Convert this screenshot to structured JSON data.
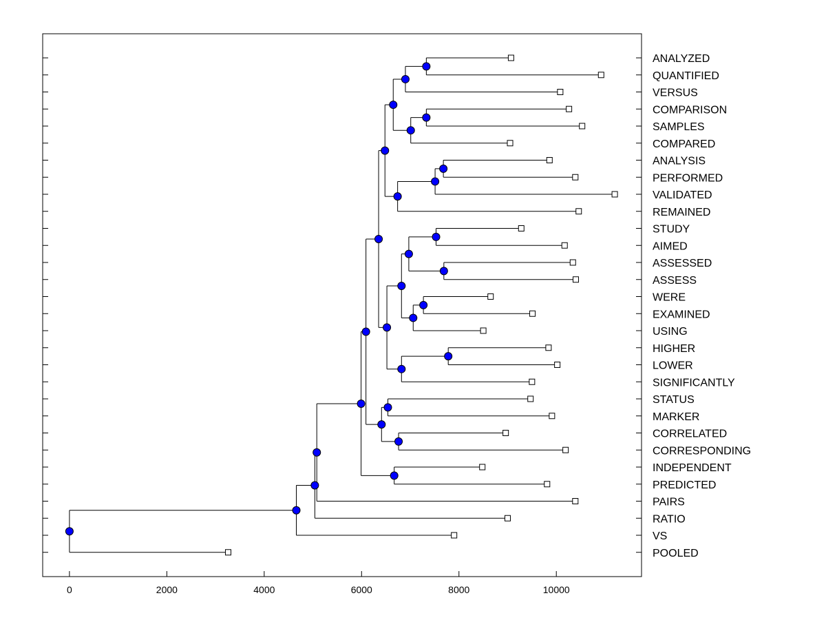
{
  "chart_data": {
    "type": "dendrogram",
    "title": "",
    "xlabel": "",
    "ylabel": "",
    "xlim": [
      -550,
      11750
    ],
    "xticks": [
      0,
      2000,
      4000,
      6000,
      8000,
      10000
    ],
    "tick_labels": [
      "0",
      "2000",
      "4000",
      "6000",
      "8000",
      "10000"
    ],
    "colors": {
      "node": "#0000ff",
      "line": "#000000",
      "leaf": "#ffffff"
    },
    "leaves": [
      {
        "label": "ANALYZED",
        "x": 9070
      },
      {
        "label": "QUANTIFIED",
        "x": 10920
      },
      {
        "label": "VERSUS",
        "x": 10080
      },
      {
        "label": "COMPARISON",
        "x": 10260
      },
      {
        "label": "SAMPLES",
        "x": 10530
      },
      {
        "label": "COMPARED",
        "x": 9050
      },
      {
        "label": "ANALYSIS",
        "x": 9860
      },
      {
        "label": "PERFORMED",
        "x": 10390
      },
      {
        "label": "VALIDATED",
        "x": 11200
      },
      {
        "label": "REMAINED",
        "x": 10460
      },
      {
        "label": "STUDY",
        "x": 9280
      },
      {
        "label": "AIMED",
        "x": 10170
      },
      {
        "label": "ASSESSED",
        "x": 10340
      },
      {
        "label": "ASSESS",
        "x": 10400
      },
      {
        "label": "WERE",
        "x": 8650
      },
      {
        "label": "EXAMINED",
        "x": 9510
      },
      {
        "label": "USING",
        "x": 8500
      },
      {
        "label": "HIGHER",
        "x": 9840
      },
      {
        "label": "LOWER",
        "x": 10020
      },
      {
        "label": "SIGNIFICANTLY",
        "x": 9500
      },
      {
        "label": "STATUS",
        "x": 9470
      },
      {
        "label": "MARKER",
        "x": 9910
      },
      {
        "label": "CORRELATED",
        "x": 8960
      },
      {
        "label": "CORRESPONDING",
        "x": 10190
      },
      {
        "label": "INDEPENDENT",
        "x": 8480
      },
      {
        "label": "PREDICTED",
        "x": 9810
      },
      {
        "label": "PAIRS",
        "x": 10390
      },
      {
        "label": "RATIO",
        "x": 9000
      },
      {
        "label": "VS",
        "x": 7900
      },
      {
        "label": "POOLED",
        "x": 3260
      }
    ],
    "nodes": [
      {
        "id": "n1",
        "x": 7330,
        "children": [
          "L0",
          "L1"
        ]
      },
      {
        "id": "n2",
        "x": 6900,
        "children": [
          "n1",
          "L2"
        ]
      },
      {
        "id": "n3",
        "x": 7330,
        "children": [
          "L3",
          "L4"
        ]
      },
      {
        "id": "n4",
        "x": 7010,
        "children": [
          "n3",
          "L5"
        ]
      },
      {
        "id": "n5",
        "x": 6650,
        "children": [
          "n2",
          "n4"
        ]
      },
      {
        "id": "n6",
        "x": 7680,
        "children": [
          "L6",
          "L7"
        ]
      },
      {
        "id": "n7",
        "x": 7510,
        "children": [
          "n6",
          "L8"
        ]
      },
      {
        "id": "n8",
        "x": 6740,
        "children": [
          "n7",
          "L9"
        ]
      },
      {
        "id": "n9",
        "x": 6480,
        "children": [
          "n5",
          "n8"
        ]
      },
      {
        "id": "n10",
        "x": 7530,
        "children": [
          "L10",
          "L11"
        ]
      },
      {
        "id": "n11",
        "x": 7690,
        "children": [
          "L12",
          "L13"
        ]
      },
      {
        "id": "n12",
        "x": 6970,
        "children": [
          "n10",
          "n11"
        ]
      },
      {
        "id": "n13",
        "x": 7270,
        "children": [
          "L14",
          "L15"
        ]
      },
      {
        "id": "n14",
        "x": 7060,
        "children": [
          "n13",
          "L16"
        ]
      },
      {
        "id": "n15",
        "x": 6820,
        "children": [
          "n12",
          "n14"
        ]
      },
      {
        "id": "n16",
        "x": 7780,
        "children": [
          "L17",
          "L18"
        ]
      },
      {
        "id": "n17",
        "x": 6820,
        "children": [
          "n16",
          "L19"
        ]
      },
      {
        "id": "n18",
        "x": 6520,
        "children": [
          "n15",
          "n17"
        ]
      },
      {
        "id": "n19",
        "x": 6350,
        "children": [
          "n9",
          "n18"
        ]
      },
      {
        "id": "n20",
        "x": 6540,
        "children": [
          "L20",
          "L21"
        ]
      },
      {
        "id": "n21",
        "x": 6760,
        "children": [
          "L22",
          "L23"
        ]
      },
      {
        "id": "n22",
        "x": 6410,
        "children": [
          "n20",
          "n21"
        ]
      },
      {
        "id": "n23",
        "x": 6090,
        "children": [
          "n19",
          "n22"
        ]
      },
      {
        "id": "n24",
        "x": 6670,
        "children": [
          "L24",
          "L25"
        ]
      },
      {
        "id": "n25",
        "x": 5990,
        "children": [
          "n23",
          "n24"
        ]
      },
      {
        "id": "n26",
        "x": 5080,
        "children": [
          "n25",
          "L26"
        ]
      },
      {
        "id": "n27",
        "x": 5040,
        "children": [
          "n26",
          "L27"
        ]
      },
      {
        "id": "n28",
        "x": 4660,
        "children": [
          "n27",
          "L28"
        ]
      },
      {
        "id": "n29",
        "x": 0,
        "children": [
          "n28",
          "L29"
        ]
      }
    ]
  }
}
